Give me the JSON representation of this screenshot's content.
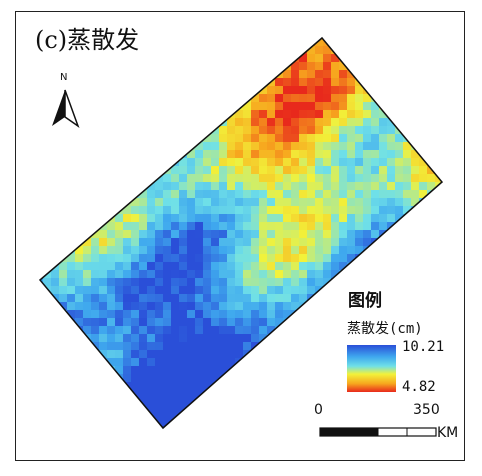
{
  "map": {
    "title": "(c)蒸散发",
    "north_label": "N",
    "legend": {
      "title": "图例",
      "variable": "蒸散发(cm)",
      "max_label": "10.21",
      "min_label": "4.82",
      "colors": [
        "#2a4fd8",
        "#3fa8ee",
        "#6fe0e8",
        "#f2f23a",
        "#f7a81e",
        "#e8281c"
      ]
    },
    "scale_bar": {
      "start_label": "0",
      "end_label": "350",
      "unit": "KM"
    }
  }
}
